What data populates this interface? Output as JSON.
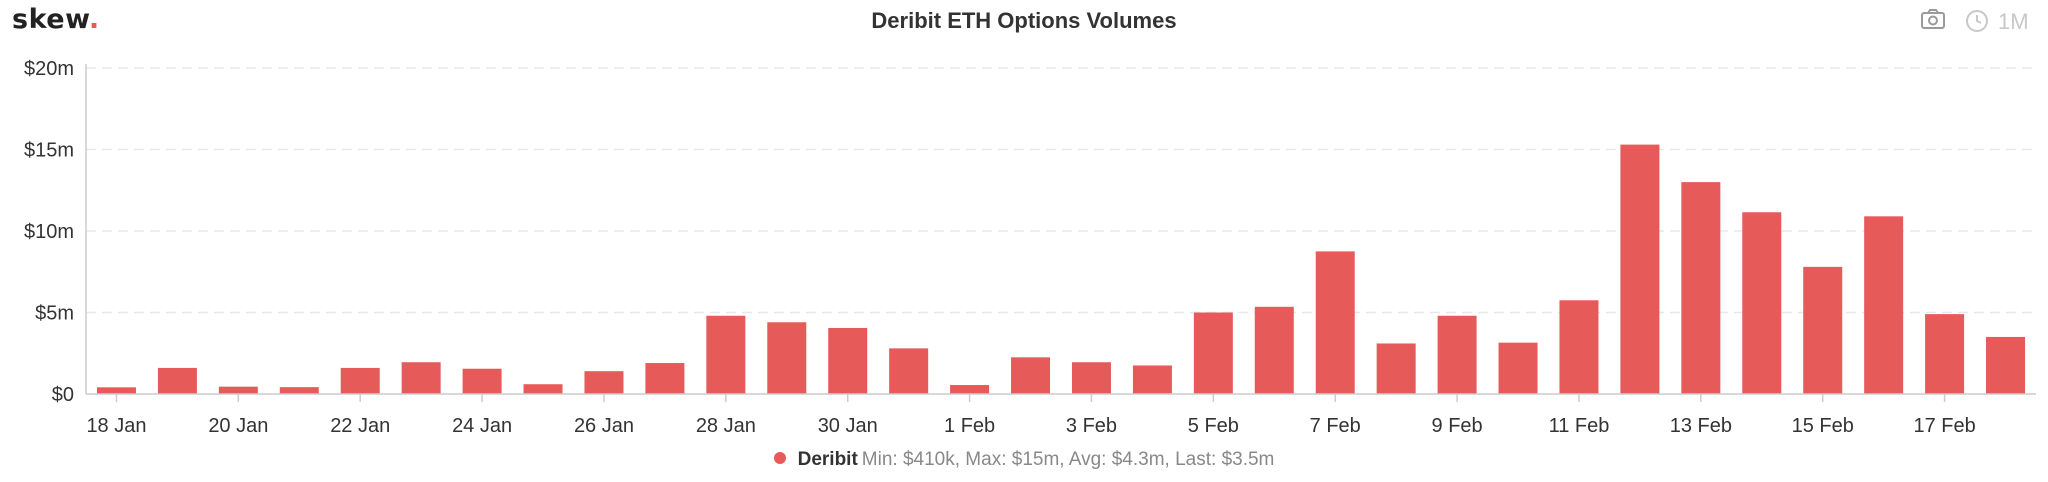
{
  "header": {
    "brand": "skew",
    "brand_dot": ".",
    "title": "Deribit ETH Options Volumes",
    "range_label": "1M",
    "camera_icon": "camera-icon",
    "clock_icon": "clock-icon"
  },
  "colors": {
    "bar": "#e65a5a",
    "axis": "#cccccc",
    "grid": "#e8e8e8",
    "muted": "#c8c8c8"
  },
  "legend": {
    "name": "Deribit",
    "stats": "Min: $410k, Max: $15m, Avg: $4.3m, Last: $3.5m"
  },
  "chart_data": {
    "type": "bar",
    "title": "Deribit ETH Options Volumes",
    "xlabel": "",
    "ylabel": "",
    "ylim": [
      0,
      20
    ],
    "y_unit": "millions USD",
    "y_ticks": [
      0,
      5,
      10,
      15,
      20
    ],
    "y_tick_labels": [
      "$0",
      "$5m",
      "$10m",
      "$15m",
      "$20m"
    ],
    "x_tick_labels": [
      "18 Jan",
      "20 Jan",
      "22 Jan",
      "24 Jan",
      "26 Jan",
      "28 Jan",
      "30 Jan",
      "1 Feb",
      "3 Feb",
      "5 Feb",
      "7 Feb",
      "9 Feb",
      "11 Feb",
      "13 Feb",
      "15 Feb",
      "17 Feb"
    ],
    "grid": true,
    "legend_position": "bottom",
    "categories": [
      "18 Jan",
      "19 Jan",
      "20 Jan",
      "21 Jan",
      "22 Jan",
      "23 Jan",
      "24 Jan",
      "25 Jan",
      "26 Jan",
      "27 Jan",
      "28 Jan",
      "29 Jan",
      "30 Jan",
      "31 Jan",
      "1 Feb",
      "2 Feb",
      "3 Feb",
      "4 Feb",
      "5 Feb",
      "6 Feb",
      "7 Feb",
      "8 Feb",
      "9 Feb",
      "10 Feb",
      "11 Feb",
      "12 Feb",
      "13 Feb",
      "14 Feb",
      "15 Feb",
      "16 Feb",
      "17 Feb",
      "18 Feb"
    ],
    "series": [
      {
        "name": "Deribit",
        "values": [
          0.41,
          1.6,
          0.45,
          0.42,
          1.6,
          1.95,
          1.55,
          0.6,
          1.4,
          1.9,
          4.8,
          4.4,
          4.05,
          2.8,
          0.55,
          2.25,
          1.95,
          1.75,
          5.0,
          5.35,
          8.75,
          3.1,
          4.8,
          3.15,
          5.75,
          15.3,
          13.0,
          11.15,
          7.8,
          10.9,
          4.9,
          3.5
        ]
      }
    ]
  }
}
